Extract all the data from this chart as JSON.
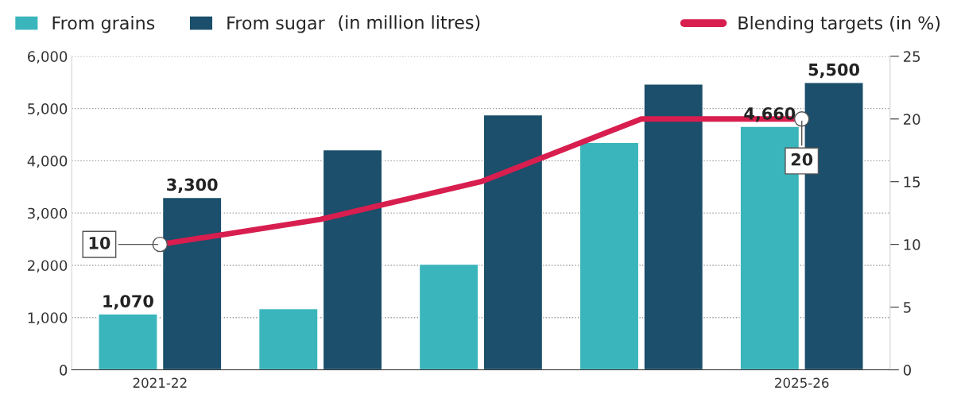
{
  "chart_data": {
    "type": "bar",
    "categories": [
      "2021-22",
      null,
      null,
      null,
      "2025-26"
    ],
    "ylim": [
      0,
      6000
    ],
    "yticks": [
      0,
      {
        "value": 1000,
        "label": "1,000"
      },
      {
        "value": 2000,
        "label": "2,000"
      },
      {
        "value": 3000,
        "label": "3,000"
      },
      {
        "value": 4000,
        "label": "4,000"
      },
      {
        "value": 5000,
        "label": "5,000"
      },
      {
        "value": 6000,
        "label": "6,000"
      }
    ],
    "y2lim": [
      0,
      25
    ],
    "y2ticks": [
      0,
      5,
      10,
      15,
      20,
      25
    ],
    "grid": "y",
    "legend": "top",
    "annotations": [
      "(in million litres)"
    ],
    "series": [
      {
        "name": "From grains",
        "color": "#3ab5bb",
        "values": [
          1070,
          1170,
          2020,
          4350,
          4660
        ],
        "value_labels": [
          "1,070",
          null,
          null,
          null,
          "4,660"
        ]
      },
      {
        "name": "From sugar",
        "color": "#1b4f6b",
        "values": [
          3300,
          4210,
          4880,
          5470,
          5500
        ],
        "value_labels": [
          "3,300",
          null,
          null,
          null,
          "5,500"
        ]
      },
      {
        "name": "Blending targets (in %)",
        "type": "line",
        "axis": "y2",
        "color": "#d81e4f",
        "values": [
          10,
          12,
          15,
          20,
          20
        ],
        "value_labels": [
          "10",
          null,
          null,
          null,
          "20"
        ]
      }
    ]
  }
}
